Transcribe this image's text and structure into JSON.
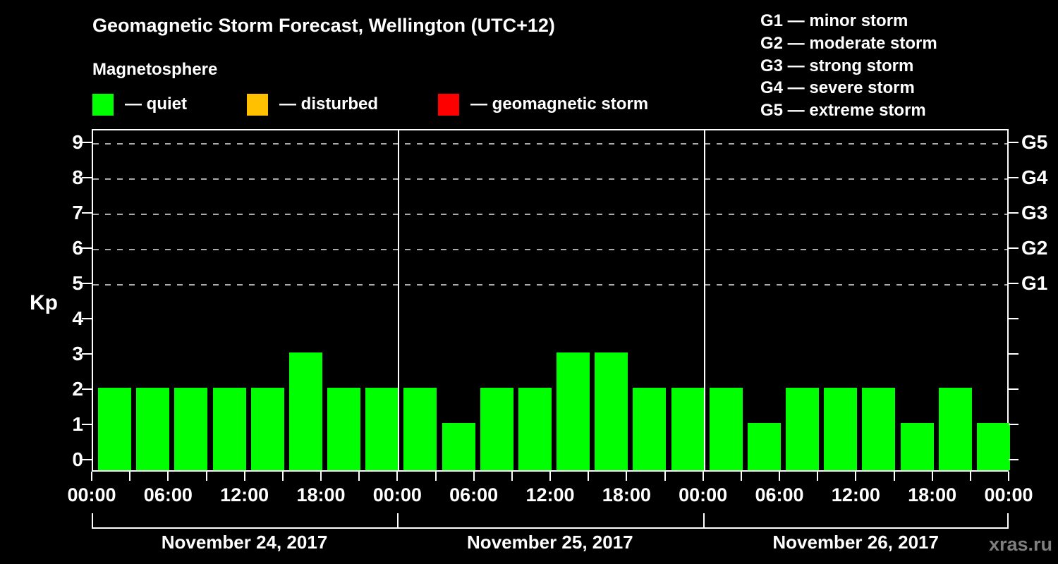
{
  "title": "Geomagnetic Storm Forecast, Wellington (UTC+12)",
  "subtitle": "Magnetosphere",
  "kp_axis_label": "Kp",
  "watermark": "xras.ru",
  "colors": {
    "background": "#000000",
    "axis": "#ffffff",
    "gridline": "#aaaaaa",
    "quiet": "#00ff00",
    "disturbed": "#ffc000",
    "storm": "#ff0000",
    "watermark": "#7f7f7f"
  },
  "activity_legend": [
    {
      "name": "quiet",
      "label": "— quiet",
      "color": "#00ff00"
    },
    {
      "name": "disturbed",
      "label": "— disturbed",
      "color": "#ffc000"
    },
    {
      "name": "storm",
      "label": "— geomagnetic storm",
      "color": "#ff0000"
    }
  ],
  "storm_scale_legend": [
    "G1 — minor storm",
    "G2 — moderate storm",
    "G3 — strong storm",
    "G4 — severe storm",
    "G5 — extreme storm"
  ],
  "chart_data": {
    "type": "bar",
    "title": "Geomagnetic Storm Forecast, Wellington (UTC+12)",
    "ylabel": "Kp",
    "ylim": [
      0,
      9
    ],
    "interval_hours": 3,
    "bars_per_day": 8,
    "bar_color": "#00ff00",
    "grid": "dashed horizontal lines at Kp 5-9 only",
    "grid_kp_levels": [
      5,
      6,
      7,
      8,
      9
    ],
    "y_ticks": [
      0,
      1,
      2,
      3,
      4,
      5,
      6,
      7,
      8,
      9
    ],
    "right_axis": [
      {
        "kp": 5,
        "label": "G1"
      },
      {
        "kp": 6,
        "label": "G2"
      },
      {
        "kp": 7,
        "label": "G3"
      },
      {
        "kp": 8,
        "label": "G4"
      },
      {
        "kp": 9,
        "label": "G5"
      }
    ],
    "x_tick_labels": [
      "00:00",
      "06:00",
      "12:00",
      "18:00",
      "00:00",
      "06:00",
      "12:00",
      "18:00",
      "00:00",
      "06:00",
      "12:00",
      "18:00",
      "00:00"
    ],
    "days": [
      {
        "date": "November 24, 2017",
        "values": [
          2,
          2,
          2,
          2,
          2,
          3,
          2,
          2
        ]
      },
      {
        "date": "November 25, 2017",
        "values": [
          2,
          1,
          2,
          2,
          3,
          3,
          2,
          2
        ]
      },
      {
        "date": "November 26, 2017",
        "values": [
          2,
          1,
          2,
          2,
          2,
          1,
          2,
          1
        ]
      }
    ]
  }
}
